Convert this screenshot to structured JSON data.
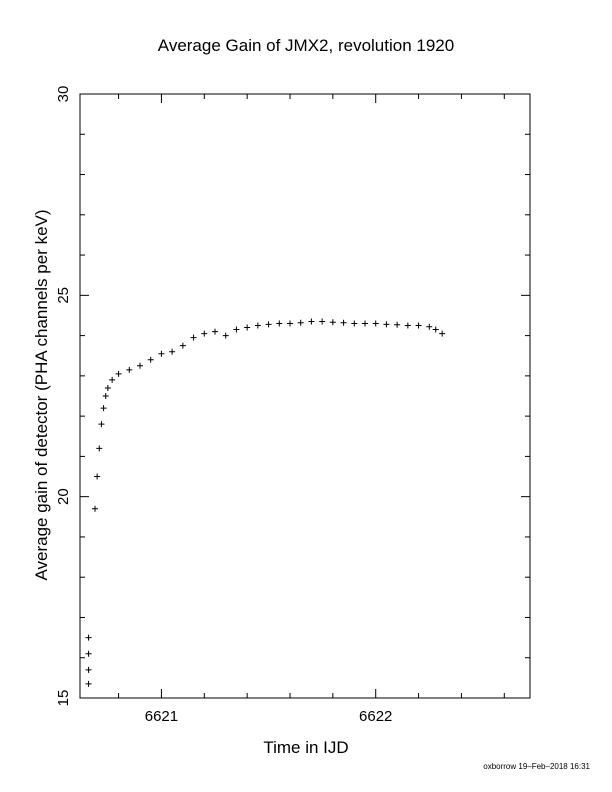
{
  "chart_data": {
    "type": "scatter",
    "title": "Average Gain of JMX2, revolution 1920",
    "xlabel": "Time in IJD",
    "ylabel": "Average gain of detector (PHA channels per keV)",
    "xlim": [
      6620.62,
      6622.72
    ],
    "ylim": [
      15,
      30
    ],
    "xticks": [
      "6621",
      "6622"
    ],
    "yticks": [
      "15",
      "20",
      "25",
      "30"
    ],
    "marker": "+",
    "grid": false,
    "series": [
      {
        "x": [
          6620.66,
          6620.66,
          6620.66,
          6620.66,
          6620.69,
          6620.7,
          6620.71,
          6620.72,
          6620.73,
          6620.74,
          6620.75,
          6620.77,
          6620.8,
          6620.85,
          6620.9,
          6620.95,
          6621.0,
          6621.05,
          6621.1,
          6621.15,
          6621.2,
          6621.25,
          6621.3,
          6621.35,
          6621.4,
          6621.45,
          6621.5,
          6621.55,
          6621.6,
          6621.65,
          6621.7,
          6621.75,
          6621.8,
          6621.85,
          6621.9,
          6621.95,
          6622.0,
          6622.05,
          6622.1,
          6622.15,
          6622.2,
          6622.25,
          6622.28,
          6622.31
        ],
        "y": [
          15.35,
          15.7,
          16.1,
          16.5,
          19.7,
          20.5,
          21.2,
          21.8,
          22.2,
          22.5,
          22.7,
          22.9,
          23.05,
          23.15,
          23.25,
          23.4,
          23.55,
          23.6,
          23.75,
          23.95,
          24.05,
          24.1,
          24.0,
          24.15,
          24.2,
          24.25,
          24.28,
          24.3,
          24.3,
          24.32,
          24.35,
          24.35,
          24.33,
          24.32,
          24.3,
          24.3,
          24.3,
          24.28,
          24.27,
          24.25,
          24.25,
          24.22,
          24.15,
          24.05
        ]
      }
    ]
  },
  "footer": "oxborrow 19–Feb–2018 16:31"
}
